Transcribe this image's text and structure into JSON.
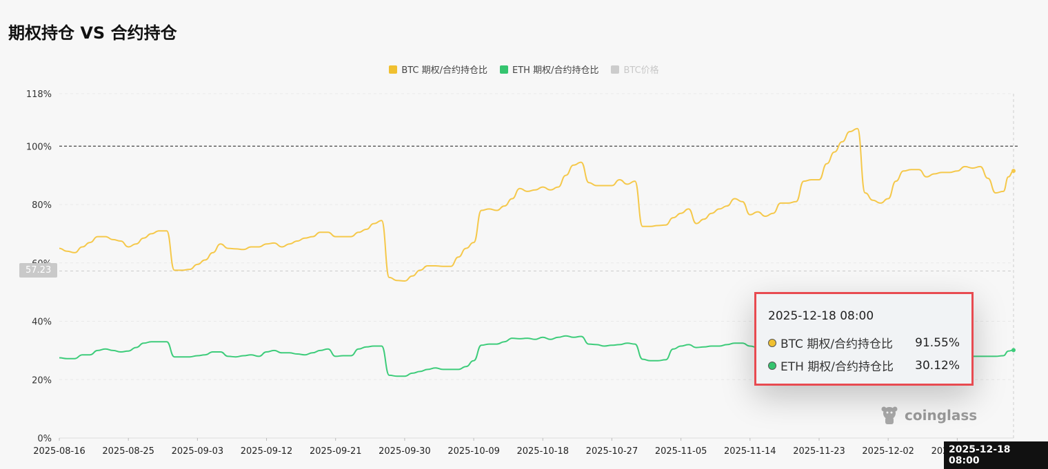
{
  "title": "期权持仓 VS 合约持仓",
  "legend": [
    {
      "label": "BTC  期权/合约持仓比",
      "color": "#f0c030",
      "enabled": true
    },
    {
      "label": "ETH  期权/合约持仓比",
      "color": "#35c46f",
      "enabled": true
    },
    {
      "label": "BTC价格",
      "color": "#cccccc",
      "enabled": false
    }
  ],
  "crosshair": {
    "y_value_label": "57.23",
    "x_value_label": "2025-12-18 08:00"
  },
  "reference_line_label": "100%",
  "tooltip": {
    "time": "2025-12-18 08:00",
    "rows": [
      {
        "label": "BTC 期权/合约持仓比",
        "value": "91.55%",
        "color": "#f0c030"
      },
      {
        "label": "ETH 期权/合约持仓比",
        "value": "30.12%",
        "color": "#35c46f"
      }
    ]
  },
  "watermark": "coinglass",
  "chart_data": {
    "type": "line",
    "title": "期权持仓 VS 合约持仓",
    "xlabel": "",
    "ylabel": "",
    "ylim": [
      0,
      118
    ],
    "y_ticks": [
      "0%",
      "20%",
      "40%",
      "60%",
      "80%",
      "100%",
      "118%"
    ],
    "y_tick_values": [
      0,
      20,
      40,
      60,
      80,
      100,
      118
    ],
    "x_tick_labels": [
      "2025-08-16",
      "2025-08-25",
      "2025-09-03",
      "2025-09-12",
      "2025-09-21",
      "2025-09-30",
      "2025-10-09",
      "2025-10-18",
      "2025-10-27",
      "2025-11-05",
      "2025-11-14",
      "2025-11-23",
      "2025-12-02",
      "2025-12-11"
    ],
    "x_start": "2025-08-16",
    "x_end": "2025-12-18 08:00",
    "reference_line": 100,
    "grid": true,
    "legend_position": "top-center",
    "series": [
      {
        "name": "BTC  期权/合约持仓比",
        "color": "#f5c84a",
        "points": [
          [
            "2025-08-16",
            65
          ],
          [
            "2025-08-17",
            64
          ],
          [
            "2025-08-18",
            63.5
          ],
          [
            "2025-08-19",
            65.5
          ],
          [
            "2025-08-20",
            67
          ],
          [
            "2025-08-21",
            69
          ],
          [
            "2025-08-22",
            69
          ],
          [
            "2025-08-23",
            68
          ],
          [
            "2025-08-24",
            67.5
          ],
          [
            "2025-08-25",
            65.5
          ],
          [
            "2025-08-26",
            66.5
          ],
          [
            "2025-08-27",
            68.5
          ],
          [
            "2025-08-28",
            70
          ],
          [
            "2025-08-29",
            71
          ],
          [
            "2025-08-30",
            71
          ],
          [
            "2025-08-31",
            57.5
          ],
          [
            "2025-09-01",
            57.5
          ],
          [
            "2025-09-02",
            57.8
          ],
          [
            "2025-09-03",
            59.5
          ],
          [
            "2025-09-04",
            61
          ],
          [
            "2025-09-05",
            63.5
          ],
          [
            "2025-09-06",
            66.5
          ],
          [
            "2025-09-07",
            65
          ],
          [
            "2025-09-08",
            64.8
          ],
          [
            "2025-09-09",
            64.6
          ],
          [
            "2025-09-10",
            65.5
          ],
          [
            "2025-09-11",
            65.5
          ],
          [
            "2025-09-12",
            66.5
          ],
          [
            "2025-09-13",
            66.8
          ],
          [
            "2025-09-14",
            65.5
          ],
          [
            "2025-09-15",
            66.5
          ],
          [
            "2025-09-16",
            67.5
          ],
          [
            "2025-09-17",
            68.5
          ],
          [
            "2025-09-18",
            69
          ],
          [
            "2025-09-19",
            70.5
          ],
          [
            "2025-09-20",
            70.5
          ],
          [
            "2025-09-21",
            69
          ],
          [
            "2025-09-22",
            69
          ],
          [
            "2025-09-23",
            69
          ],
          [
            "2025-09-24",
            70.5
          ],
          [
            "2025-09-25",
            71.5
          ],
          [
            "2025-09-26",
            73.5
          ],
          [
            "2025-09-27",
            74.5
          ],
          [
            "2025-09-28",
            55
          ],
          [
            "2025-09-29",
            54
          ],
          [
            "2025-09-30",
            53.8
          ],
          [
            "2025-10-01",
            55.5
          ],
          [
            "2025-10-02",
            57.5
          ],
          [
            "2025-10-03",
            59
          ],
          [
            "2025-10-04",
            59
          ],
          [
            "2025-10-05",
            58.8
          ],
          [
            "2025-10-06",
            58.8
          ],
          [
            "2025-10-07",
            62
          ],
          [
            "2025-10-08",
            65
          ],
          [
            "2025-10-09",
            67
          ],
          [
            "2025-10-10",
            78
          ],
          [
            "2025-10-11",
            78.5
          ],
          [
            "2025-10-12",
            78
          ],
          [
            "2025-10-13",
            79.5
          ],
          [
            "2025-10-14",
            82
          ],
          [
            "2025-10-15",
            85.5
          ],
          [
            "2025-10-16",
            84.5
          ],
          [
            "2025-10-17",
            85
          ],
          [
            "2025-10-18",
            86
          ],
          [
            "2025-10-19",
            85
          ],
          [
            "2025-10-20",
            86
          ],
          [
            "2025-10-21",
            90
          ],
          [
            "2025-10-22",
            93.5
          ],
          [
            "2025-10-23",
            94.5
          ],
          [
            "2025-10-24",
            87.5
          ],
          [
            "2025-10-25",
            86.5
          ],
          [
            "2025-10-26",
            86.5
          ],
          [
            "2025-10-27",
            86.5
          ],
          [
            "2025-10-28",
            88.5
          ],
          [
            "2025-10-29",
            87
          ],
          [
            "2025-10-30",
            88
          ],
          [
            "2025-10-31",
            72.5
          ],
          [
            "2025-11-01",
            72.5
          ],
          [
            "2025-11-02",
            72.8
          ],
          [
            "2025-11-03",
            73
          ],
          [
            "2025-11-04",
            75.5
          ],
          [
            "2025-11-05",
            77
          ],
          [
            "2025-11-06",
            78.5
          ],
          [
            "2025-11-07",
            73.5
          ],
          [
            "2025-11-08",
            75
          ],
          [
            "2025-11-09",
            77
          ],
          [
            "2025-11-10",
            78.5
          ],
          [
            "2025-11-11",
            79.5
          ],
          [
            "2025-11-12",
            82
          ],
          [
            "2025-11-13",
            81
          ],
          [
            "2025-11-14",
            76.5
          ],
          [
            "2025-11-15",
            77.5
          ],
          [
            "2025-11-16",
            76
          ],
          [
            "2025-11-17",
            77
          ],
          [
            "2025-11-18",
            80.5
          ],
          [
            "2025-11-19",
            80.5
          ],
          [
            "2025-11-20",
            81
          ],
          [
            "2025-11-21",
            88
          ],
          [
            "2025-11-22",
            88.5
          ],
          [
            "2025-11-23",
            88.5
          ],
          [
            "2025-11-24",
            94
          ],
          [
            "2025-11-25",
            98
          ],
          [
            "2025-11-26",
            101.5
          ],
          [
            "2025-11-27",
            105
          ],
          [
            "2025-11-28",
            106
          ],
          [
            "2025-11-29",
            84
          ],
          [
            "2025-11-30",
            81.5
          ],
          [
            "2025-12-01",
            80.5
          ],
          [
            "2025-12-02",
            82
          ],
          [
            "2025-12-03",
            88
          ],
          [
            "2025-12-04",
            91.5
          ],
          [
            "2025-12-05",
            92
          ],
          [
            "2025-12-06",
            92
          ],
          [
            "2025-12-07",
            89.5
          ],
          [
            "2025-12-08",
            90.5
          ],
          [
            "2025-12-09",
            91
          ],
          [
            "2025-12-10",
            91
          ],
          [
            "2025-12-11",
            91.5
          ],
          [
            "2025-12-12",
            93
          ],
          [
            "2025-12-13",
            92.5
          ],
          [
            "2025-12-14",
            93
          ],
          [
            "2025-12-15",
            89
          ],
          [
            "2025-12-16",
            84
          ],
          [
            "2025-12-17",
            84.5
          ],
          [
            "2025-12-17 16:00",
            89.5
          ],
          [
            "2025-12-18 08:00",
            91.55
          ]
        ]
      },
      {
        "name": "ETH  期权/合约持仓比",
        "color": "#3dcc7a",
        "points": [
          [
            "2025-08-16",
            27.5
          ],
          [
            "2025-08-17",
            27.2
          ],
          [
            "2025-08-18",
            27.2
          ],
          [
            "2025-08-19",
            28.5
          ],
          [
            "2025-08-20",
            28.5
          ],
          [
            "2025-08-21",
            30
          ],
          [
            "2025-08-22",
            30.5
          ],
          [
            "2025-08-23",
            30
          ],
          [
            "2025-08-24",
            29.5
          ],
          [
            "2025-08-25",
            29.8
          ],
          [
            "2025-08-26",
            31
          ],
          [
            "2025-08-27",
            32.5
          ],
          [
            "2025-08-28",
            33
          ],
          [
            "2025-08-29",
            33
          ],
          [
            "2025-08-30",
            33
          ],
          [
            "2025-08-31",
            27.8
          ],
          [
            "2025-09-01",
            27.8
          ],
          [
            "2025-09-02",
            27.8
          ],
          [
            "2025-09-03",
            28.2
          ],
          [
            "2025-09-04",
            28.5
          ],
          [
            "2025-09-05",
            29.5
          ],
          [
            "2025-09-06",
            29.5
          ],
          [
            "2025-09-07",
            28
          ],
          [
            "2025-09-08",
            27.8
          ],
          [
            "2025-09-09",
            28.2
          ],
          [
            "2025-09-10",
            28.5
          ],
          [
            "2025-09-11",
            28
          ],
          [
            "2025-09-12",
            29.5
          ],
          [
            "2025-09-13",
            30
          ],
          [
            "2025-09-14",
            29.2
          ],
          [
            "2025-09-15",
            29.2
          ],
          [
            "2025-09-16",
            28.8
          ],
          [
            "2025-09-17",
            28.5
          ],
          [
            "2025-09-18",
            29.2
          ],
          [
            "2025-09-19",
            30
          ],
          [
            "2025-09-20",
            30.5
          ],
          [
            "2025-09-21",
            28
          ],
          [
            "2025-09-22",
            28.2
          ],
          [
            "2025-09-23",
            28.2
          ],
          [
            "2025-09-24",
            30.5
          ],
          [
            "2025-09-25",
            31.2
          ],
          [
            "2025-09-26",
            31.5
          ],
          [
            "2025-09-27",
            31.5
          ],
          [
            "2025-09-28",
            21.5
          ],
          [
            "2025-09-29",
            21.2
          ],
          [
            "2025-09-30",
            21.2
          ],
          [
            "2025-10-01",
            22.2
          ],
          [
            "2025-10-02",
            22.8
          ],
          [
            "2025-10-03",
            23.5
          ],
          [
            "2025-10-04",
            24
          ],
          [
            "2025-10-05",
            23.5
          ],
          [
            "2025-10-06",
            23.5
          ],
          [
            "2025-10-07",
            23.5
          ],
          [
            "2025-10-08",
            24.5
          ],
          [
            "2025-10-09",
            26.5
          ],
          [
            "2025-10-10",
            31.8
          ],
          [
            "2025-10-11",
            32.2
          ],
          [
            "2025-10-12",
            32.2
          ],
          [
            "2025-10-13",
            33
          ],
          [
            "2025-10-14",
            34.2
          ],
          [
            "2025-10-15",
            34
          ],
          [
            "2025-10-16",
            34.2
          ],
          [
            "2025-10-17",
            33.8
          ],
          [
            "2025-10-18",
            34.5
          ],
          [
            "2025-10-19",
            33.8
          ],
          [
            "2025-10-20",
            34.5
          ],
          [
            "2025-10-21",
            35
          ],
          [
            "2025-10-22",
            34.5
          ],
          [
            "2025-10-23",
            34.8
          ],
          [
            "2025-10-24",
            32.2
          ],
          [
            "2025-10-25",
            32
          ],
          [
            "2025-10-26",
            31.5
          ],
          [
            "2025-10-27",
            31.8
          ],
          [
            "2025-10-28",
            32
          ],
          [
            "2025-10-29",
            32.5
          ],
          [
            "2025-10-30",
            32.2
          ],
          [
            "2025-10-31",
            27
          ],
          [
            "2025-11-01",
            26.5
          ],
          [
            "2025-11-02",
            26.5
          ],
          [
            "2025-11-03",
            26.8
          ],
          [
            "2025-11-04",
            30.5
          ],
          [
            "2025-11-05",
            31.5
          ],
          [
            "2025-11-06",
            32
          ],
          [
            "2025-11-07",
            31
          ],
          [
            "2025-11-08",
            31.2
          ],
          [
            "2025-11-09",
            31.5
          ],
          [
            "2025-11-10",
            31.5
          ],
          [
            "2025-11-11",
            32
          ],
          [
            "2025-11-12",
            32.5
          ],
          [
            "2025-11-13",
            32.5
          ],
          [
            "2025-11-14",
            31.5
          ],
          [
            "2025-11-15",
            31
          ],
          [
            "2025-11-16",
            30.5
          ],
          [
            "2025-11-17",
            30.5
          ],
          [
            "2025-11-18",
            30.5
          ],
          [
            "2025-11-19",
            30.5
          ],
          [
            "2025-11-20",
            30
          ],
          [
            "2025-11-21",
            29.5
          ],
          [
            "2025-11-22",
            29.5
          ],
          [
            "2025-11-23",
            29.5
          ],
          [
            "2025-11-24",
            29
          ],
          [
            "2025-11-25",
            29
          ],
          [
            "2025-11-26",
            28.5
          ],
          [
            "2025-11-27",
            28.5
          ],
          [
            "2025-11-28",
            28.5
          ],
          [
            "2025-11-29",
            28
          ],
          [
            "2025-11-30",
            28
          ],
          [
            "2025-12-01",
            28
          ],
          [
            "2025-12-02",
            28
          ],
          [
            "2025-12-03",
            28
          ],
          [
            "2025-12-04",
            28
          ],
          [
            "2025-12-05",
            28
          ],
          [
            "2025-12-06",
            28
          ],
          [
            "2025-12-07",
            28
          ],
          [
            "2025-12-08",
            28
          ],
          [
            "2025-12-09",
            28
          ],
          [
            "2025-12-10",
            28
          ],
          [
            "2025-12-11",
            28
          ],
          [
            "2025-12-12",
            28
          ],
          [
            "2025-12-13",
            28
          ],
          [
            "2025-12-14",
            28
          ],
          [
            "2025-12-15",
            28
          ],
          [
            "2025-12-16",
            28
          ],
          [
            "2025-12-17",
            28.2
          ],
          [
            "2025-12-17 16:00",
            29.8
          ],
          [
            "2025-12-18 08:00",
            30.12
          ]
        ]
      }
    ]
  }
}
